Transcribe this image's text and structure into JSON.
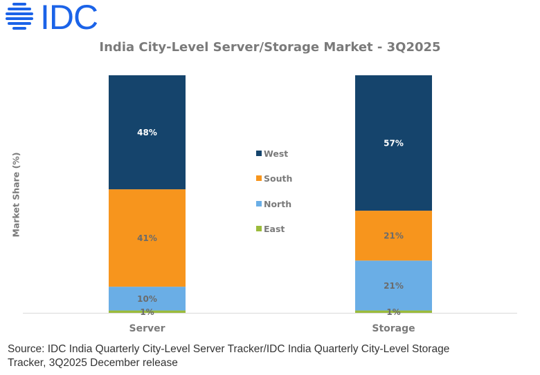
{
  "logo": {
    "text": "IDC",
    "icon": "idc-globe-icon",
    "color": "#1b63e8"
  },
  "chart_data": {
    "type": "bar",
    "stacked": true,
    "title": "India City-Level Server/Storage Market - 3Q2025",
    "xlabel": "",
    "ylabel": "Market Share (%)",
    "ylim": [
      0,
      100
    ],
    "grid": false,
    "legend_position": "center",
    "categories": [
      "Server",
      "Storage"
    ],
    "series": [
      {
        "name": "East",
        "color": "#9bbb3b",
        "values": [
          1,
          1
        ],
        "labels": [
          "1%",
          "1%"
        ],
        "label_color": "#6b6b6b"
      },
      {
        "name": "North",
        "color": "#6aaee6",
        "values": [
          10,
          21
        ],
        "labels": [
          "10%",
          "21%"
        ],
        "label_color": "#6b6b6b"
      },
      {
        "name": "South",
        "color": "#f7951d",
        "values": [
          41,
          21
        ],
        "labels": [
          "41%",
          "21%"
        ],
        "label_color": "#6b6b6b"
      },
      {
        "name": "West",
        "color": "#15446c",
        "values": [
          48,
          57
        ],
        "labels": [
          "48%",
          "57%"
        ],
        "label_color": "#ffffff"
      }
    ],
    "legend_order": [
      "West",
      "South",
      "North",
      "East"
    ]
  },
  "source": "Source: IDC India Quarterly City-Level Server Tracker/IDC India Quarterly City-Level Storage Tracker, 3Q2025 December release"
}
